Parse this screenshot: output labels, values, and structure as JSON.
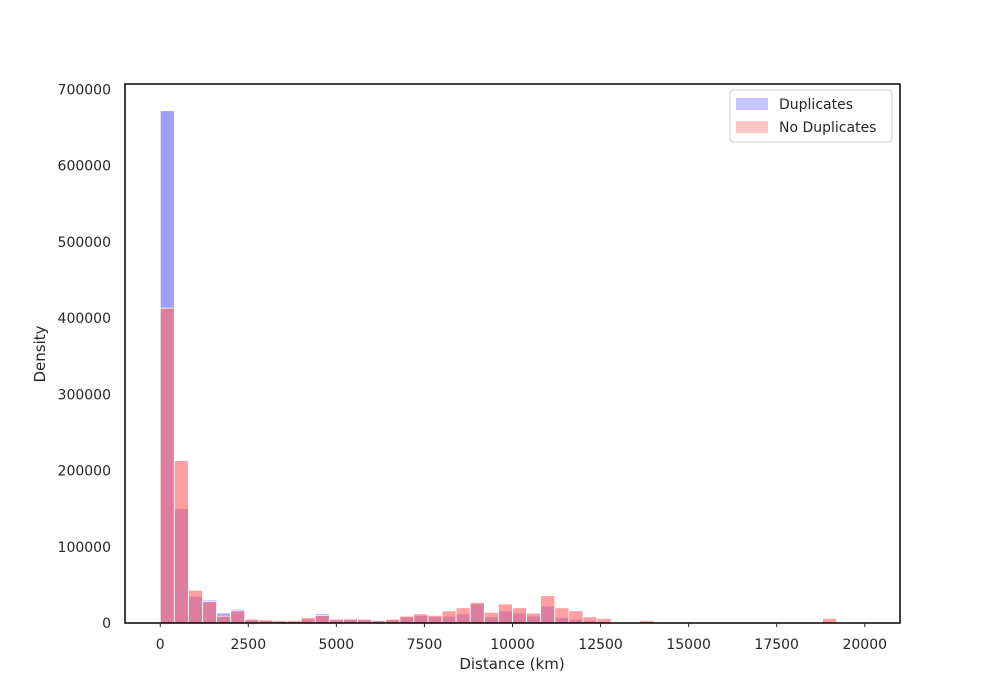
{
  "chart_data": {
    "type": "bar",
    "subtype": "overlapping-histogram",
    "title": "",
    "xlabel": "Distance (km)",
    "ylabel": "Density",
    "xlim": [
      -1000,
      21000
    ],
    "ylim": [
      0,
      707000
    ],
    "xticks": [
      0,
      2500,
      5000,
      7500,
      10000,
      12500,
      15000,
      17500,
      20000
    ],
    "yticks": [
      0,
      100000,
      200000,
      300000,
      400000,
      500000,
      600000,
      700000
    ],
    "grid": false,
    "legend_position": "top-right",
    "bin_start": 0,
    "bin_width": 400,
    "series": [
      {
        "name": "Duplicates",
        "color": "#6b6bff",
        "values": [
          672000,
          150000,
          35000,
          30000,
          13000,
          18000,
          4000,
          3000,
          2000,
          2000,
          5000,
          12000,
          4000,
          6000,
          4000,
          3000,
          4000,
          8000,
          10000,
          8000,
          9000,
          12000,
          25000,
          8000,
          16000,
          13000,
          9000,
          22000,
          7000,
          5000,
          3000,
          2000,
          1000,
          1000,
          500,
          200,
          100,
          100,
          100,
          100,
          100,
          100,
          100,
          100,
          100,
          100,
          100,
          100,
          100,
          100
        ]
      },
      {
        "name": "No Duplicates",
        "color": "#ff6b6b",
        "values": [
          413000,
          213000,
          43000,
          28000,
          9000,
          16000,
          5000,
          4000,
          3000,
          3000,
          7000,
          10000,
          5000,
          5000,
          5000,
          3000,
          5000,
          9000,
          12000,
          10000,
          16000,
          20000,
          27000,
          14000,
          25000,
          20000,
          13000,
          36000,
          20000,
          16000,
          8000,
          6000,
          1000,
          1000,
          3000,
          1000,
          100,
          100,
          100,
          100,
          100,
          100,
          100,
          1000,
          1000,
          1000,
          1000,
          6000,
          1000,
          100
        ]
      }
    ]
  }
}
